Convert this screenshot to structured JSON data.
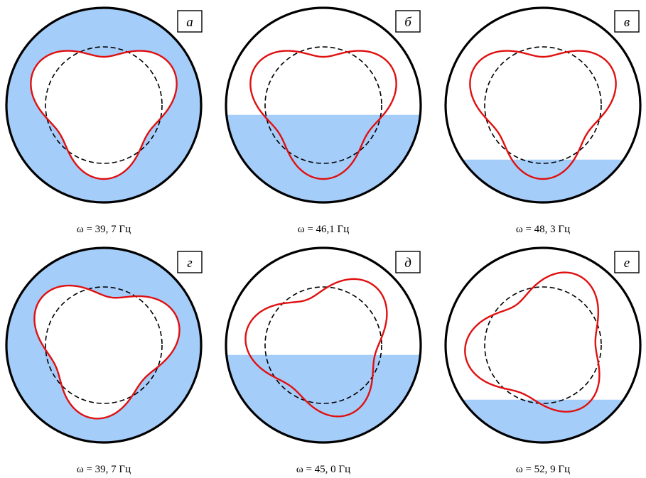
{
  "colors": {
    "fluid": "#a5cdfa",
    "outline": "#000000",
    "mode": "#e01010",
    "background": "#ffffff"
  },
  "panels": [
    {
      "label": "а",
      "caption": "ω = 39, 7 Гц",
      "fill_level": 1.0,
      "phase": 0.0
    },
    {
      "label": "б",
      "caption": "ω = 46,1 Гц",
      "fill_level": 0.45,
      "phase": 0.0
    },
    {
      "label": "в",
      "caption": "ω = 48, 3 Гц",
      "fill_level": 0.22,
      "phase": 0.0
    },
    {
      "label": "г",
      "caption": "ω = 39, 7 Гц",
      "fill_level": 1.0,
      "phase": 0.15
    },
    {
      "label": "д",
      "caption": "ω = 45, 0 Гц",
      "fill_level": 0.45,
      "phase": -0.35
    },
    {
      "label": "е",
      "caption": "ω = 52, 9 Гц",
      "fill_level": 0.22,
      "phase": -0.6
    }
  ]
}
